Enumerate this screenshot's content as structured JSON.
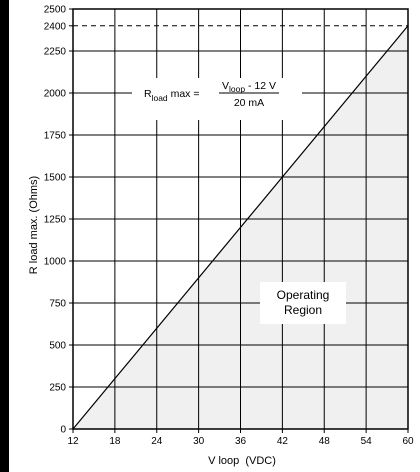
{
  "chart_data": {
    "type": "line",
    "xlabel": "V loop  (VDC)",
    "ylabel": "R load max. (Ohms)",
    "xlim": [
      12,
      60
    ],
    "ylim": [
      0,
      2500
    ],
    "x_ticks": [
      12,
      18,
      24,
      30,
      36,
      42,
      48,
      54,
      60
    ],
    "y_ticks": [
      0,
      250,
      500,
      750,
      1000,
      1250,
      1500,
      1750,
      2000,
      2250,
      2400,
      2500
    ],
    "grid": true,
    "series": [
      {
        "x": [
          12,
          60
        ],
        "y": [
          0,
          2400
        ]
      }
    ],
    "reference_lines": [
      {
        "axis": "y",
        "value": 2400,
        "style": "dashed"
      }
    ],
    "shaded_region": {
      "label_line1": "Operating",
      "label_line2": "Region"
    },
    "formula": {
      "lhs_main": "R",
      "lhs_sub": "load",
      "lhs_rest": " max = ",
      "num_main": "V",
      "num_sub": "loop",
      "num_rest": " - 12 V",
      "den": "20 mA"
    },
    "colors": {
      "fill": "#f0f0f0",
      "line": "#000000",
      "grid": "#000000",
      "frame": "#000000"
    }
  }
}
